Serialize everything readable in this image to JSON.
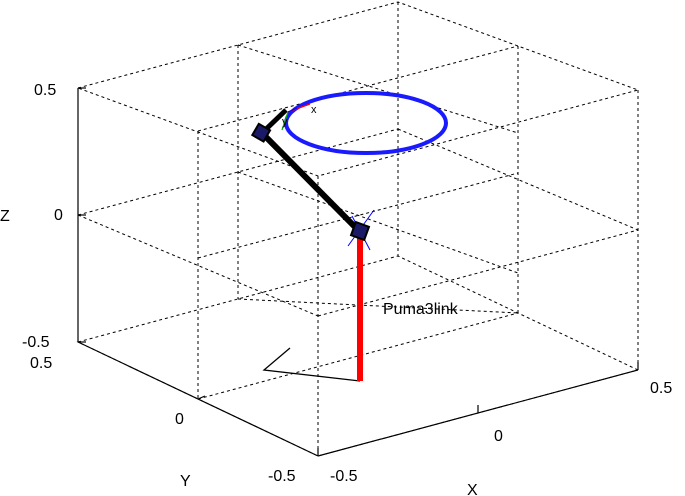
{
  "figure": {
    "robot_name": "Puma3link",
    "axes": {
      "x": {
        "label": "X",
        "ticks": [
          "-0.5",
          "0",
          "0.5"
        ]
      },
      "y": {
        "label": "Y",
        "ticks": [
          "0.5",
          "0",
          "-0.5"
        ]
      },
      "z": {
        "label": "Z",
        "ticks": [
          "0.5",
          "0",
          "-0.5"
        ]
      }
    },
    "end_effector_frame": {
      "x_label": "x",
      "y_label": "y"
    },
    "colors": {
      "base_link": "#ff0000",
      "arm_links": "#000000",
      "trajectory": "#1a1aff",
      "joints": "#000000",
      "frame_x": "#ff0000",
      "frame_y": "#00aa00",
      "frame_z": "#0000ff"
    }
  }
}
